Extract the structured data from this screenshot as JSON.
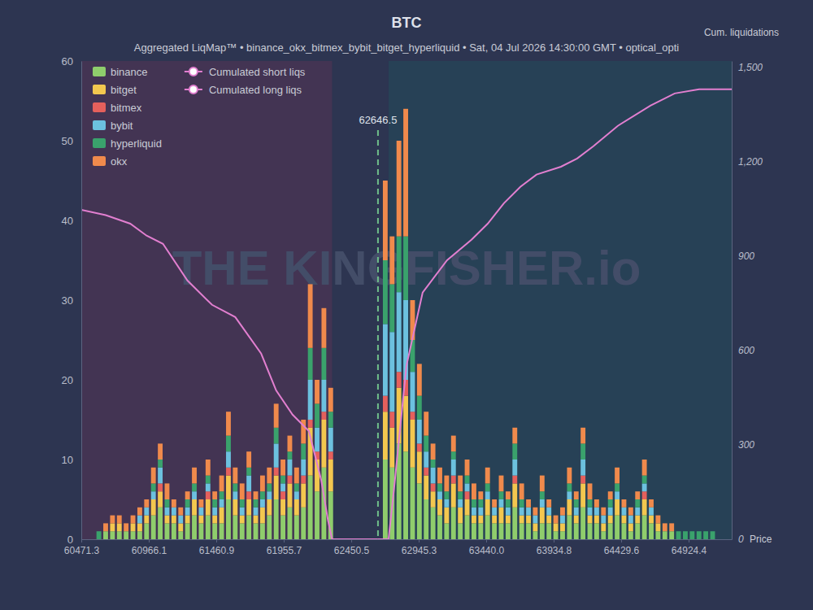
{
  "chart_data": {
    "type": "bar",
    "title": "BTC",
    "subtitle": "Aggregated LiqMap™ • binance_okx_bitmex_bybit_bitget_hyperliquid • Sat, 04 Jul 2026 14:30:00 GMT • optical_opti",
    "xlabel": "Price",
    "y2label": "Cum. liquidations",
    "watermark": "THE KINGFISHER.io",
    "annotations": [
      {
        "x": 62646.5,
        "text": "62646.5"
      }
    ],
    "stacked": true,
    "grid": false,
    "legend": "upper left",
    "xlim": [
      60471.3,
      65240
    ],
    "xticks": [
      60471.3,
      60966.1,
      61460.9,
      61955.7,
      62450.5,
      62945.3,
      {
        "value": 63440,
        "label": "63440.0"
      },
      63934.8,
      64429.6,
      64924.4
    ],
    "ylim": [
      0,
      60
    ],
    "yticks": [
      0,
      10,
      20,
      30,
      40,
      50,
      60
    ],
    "y2lim": [
      0,
      1520
    ],
    "y2ticks": [
      0,
      300,
      600,
      900,
      {
        "value": 1200,
        "label": "1,200"
      },
      {
        "value": 1500,
        "label": "1,500"
      }
    ],
    "x": [
      60600,
      60650,
      60700,
      60750,
      60800,
      60850,
      60900,
      60950,
      61000,
      61050,
      61100,
      61150,
      61200,
      61250,
      61300,
      61350,
      61400,
      61450,
      61500,
      61550,
      61600,
      61650,
      61700,
      61750,
      61800,
      61850,
      61900,
      61950,
      62000,
      62050,
      62100,
      62150,
      62200,
      62250,
      62300,
      62700,
      62750,
      62800,
      62850,
      62900,
      62950,
      63000,
      63050,
      63100,
      63150,
      63200,
      63250,
      63300,
      63350,
      63400,
      63450,
      63500,
      63550,
      63600,
      63650,
      63700,
      63750,
      63800,
      63850,
      63900,
      63950,
      64000,
      64050,
      64100,
      64150,
      64200,
      64250,
      64300,
      64350,
      64400,
      64450,
      64500,
      64550,
      64600,
      64650,
      64700,
      64750,
      64800,
      64850,
      64900,
      64950,
      65000,
      65050,
      65100
    ],
    "series": [
      {
        "name": "binance",
        "color": "#8fcd6c",
        "values": [
          0,
          1,
          1,
          1,
          1,
          1,
          1,
          2,
          3,
          4,
          2,
          2,
          1,
          2,
          3,
          2,
          3,
          2,
          2,
          5,
          3,
          2,
          3,
          2,
          2,
          3,
          5,
          3,
          4,
          3,
          4,
          8,
          6,
          9,
          6,
          10,
          9,
          12,
          11,
          9,
          7,
          5,
          4,
          3,
          2,
          4,
          2,
          3,
          2,
          2,
          3,
          2,
          2,
          2,
          4,
          2,
          2,
          1,
          2,
          2,
          1,
          1,
          3,
          2,
          4,
          2,
          2,
          1,
          2,
          3,
          2,
          1,
          2,
          3,
          2,
          1,
          1,
          1,
          0,
          0,
          0,
          0,
          0,
          0
        ]
      },
      {
        "name": "bitget",
        "color": "#f3c74f",
        "values": [
          0,
          0,
          1,
          1,
          0,
          1,
          1,
          1,
          2,
          2,
          1,
          1,
          1,
          1,
          2,
          1,
          2,
          1,
          2,
          3,
          2,
          1,
          2,
          1,
          2,
          2,
          3,
          2,
          3,
          2,
          3,
          6,
          4,
          6,
          4,
          6,
          5,
          7,
          7,
          6,
          4,
          3,
          2,
          2,
          2,
          3,
          2,
          2,
          1,
          1,
          2,
          1,
          2,
          1,
          3,
          1,
          1,
          1,
          2,
          1,
          1,
          1,
          2,
          1,
          3,
          1,
          1,
          1,
          1,
          2,
          1,
          1,
          1,
          2,
          1,
          1,
          0,
          0,
          0,
          0,
          0,
          0,
          0,
          0
        ]
      },
      {
        "name": "bitmex",
        "color": "#e5605c",
        "values": [
          0,
          0,
          0,
          0,
          0,
          0,
          0,
          0,
          0,
          1,
          0,
          0,
          0,
          0,
          0,
          0,
          1,
          0,
          0,
          1,
          0,
          0,
          1,
          0,
          0,
          0,
          1,
          1,
          1,
          0,
          1,
          1,
          1,
          1,
          1,
          2,
          2,
          2,
          2,
          1,
          1,
          1,
          1,
          0,
          0,
          1,
          0,
          1,
          0,
          0,
          0,
          0,
          0,
          0,
          1,
          0,
          0,
          0,
          0,
          0,
          0,
          0,
          0,
          0,
          1,
          0,
          0,
          0,
          0,
          0,
          0,
          0,
          0,
          1,
          0,
          0,
          0,
          0,
          0,
          0,
          0,
          0,
          0,
          0
        ]
      },
      {
        "name": "bybit",
        "color": "#6cc1df",
        "values": [
          0,
          0,
          0,
          0,
          0,
          0,
          1,
          1,
          1,
          2,
          1,
          1,
          1,
          1,
          1,
          1,
          1,
          1,
          1,
          2,
          1,
          1,
          2,
          1,
          1,
          1,
          3,
          1,
          2,
          1,
          2,
          5,
          3,
          4,
          3,
          9,
          10,
          10,
          10,
          5,
          3,
          2,
          2,
          1,
          1,
          2,
          1,
          1,
          1,
          1,
          1,
          1,
          1,
          1,
          2,
          1,
          1,
          1,
          1,
          1,
          0,
          1,
          1,
          1,
          2,
          1,
          1,
          1,
          1,
          1,
          1,
          1,
          1,
          1,
          1,
          0,
          0,
          0,
          0,
          0,
          0,
          0,
          0,
          0
        ]
      },
      {
        "name": "hyperliquid",
        "color": "#3aa26c",
        "values": [
          1,
          0,
          0,
          0,
          0,
          0,
          0,
          0,
          1,
          1,
          1,
          0,
          0,
          1,
          1,
          0,
          1,
          1,
          1,
          2,
          1,
          1,
          1,
          1,
          1,
          1,
          2,
          1,
          1,
          1,
          2,
          4,
          3,
          4,
          2,
          8,
          6,
          7,
          8,
          4,
          3,
          2,
          1,
          1,
          1,
          1,
          1,
          1,
          1,
          1,
          1,
          0,
          1,
          1,
          2,
          1,
          0,
          0,
          1,
          0,
          0,
          0,
          1,
          1,
          2,
          1,
          0,
          0,
          1,
          1,
          0,
          0,
          1,
          1,
          0,
          0,
          0,
          0,
          1,
          1,
          1,
          1,
          1,
          1
        ]
      },
      {
        "name": "okx",
        "color": "#f08a4c",
        "values": [
          0,
          1,
          1,
          1,
          1,
          1,
          1,
          1,
          2,
          2,
          2,
          1,
          1,
          1,
          2,
          1,
          2,
          1,
          2,
          3,
          2,
          2,
          2,
          1,
          2,
          2,
          3,
          2,
          2,
          2,
          3,
          8,
          3,
          5,
          3,
          10,
          6,
          12,
          16,
          5,
          4,
          3,
          2,
          2,
          2,
          2,
          2,
          2,
          2,
          1,
          2,
          1,
          2,
          1,
          2,
          2,
          1,
          1,
          2,
          1,
          1,
          1,
          2,
          1,
          2,
          2,
          1,
          1,
          1,
          2,
          1,
          1,
          1,
          2,
          1,
          1,
          1,
          1,
          0,
          0,
          0,
          0,
          0,
          0
        ]
      },
      {
        "name": "Cumulated short liqs",
        "color": "#e27fd0",
        "type": "line",
        "axis": "y2",
        "x": [
          62646.5,
          62724,
          62765,
          62855,
          62974,
          63153,
          63332,
          63451,
          63570,
          63690,
          63809,
          63988,
          64107,
          64226,
          64405,
          64644,
          64822,
          65001,
          65240
        ],
        "values": [
          0,
          0,
          163,
          551,
          784,
          887,
          952,
          1003,
          1068,
          1120,
          1159,
          1184,
          1210,
          1249,
          1314,
          1378,
          1417,
          1430,
          1430
        ]
      },
      {
        "name": "Cumulated long liqs",
        "color": "#e27fd0",
        "type": "line",
        "axis": "y2",
        "x": [
          60471.3,
          60650,
          60830,
          60950,
          61070,
          61250,
          61430,
          61600,
          61790,
          61900,
          62020,
          62140,
          62230,
          62280,
          62310,
          62646.5
        ],
        "values": [
          1047,
          1030,
          1003,
          965,
          939,
          822,
          745,
          706,
          590,
          473,
          396,
          344,
          189,
          60,
          0,
          0
        ]
      }
    ]
  }
}
